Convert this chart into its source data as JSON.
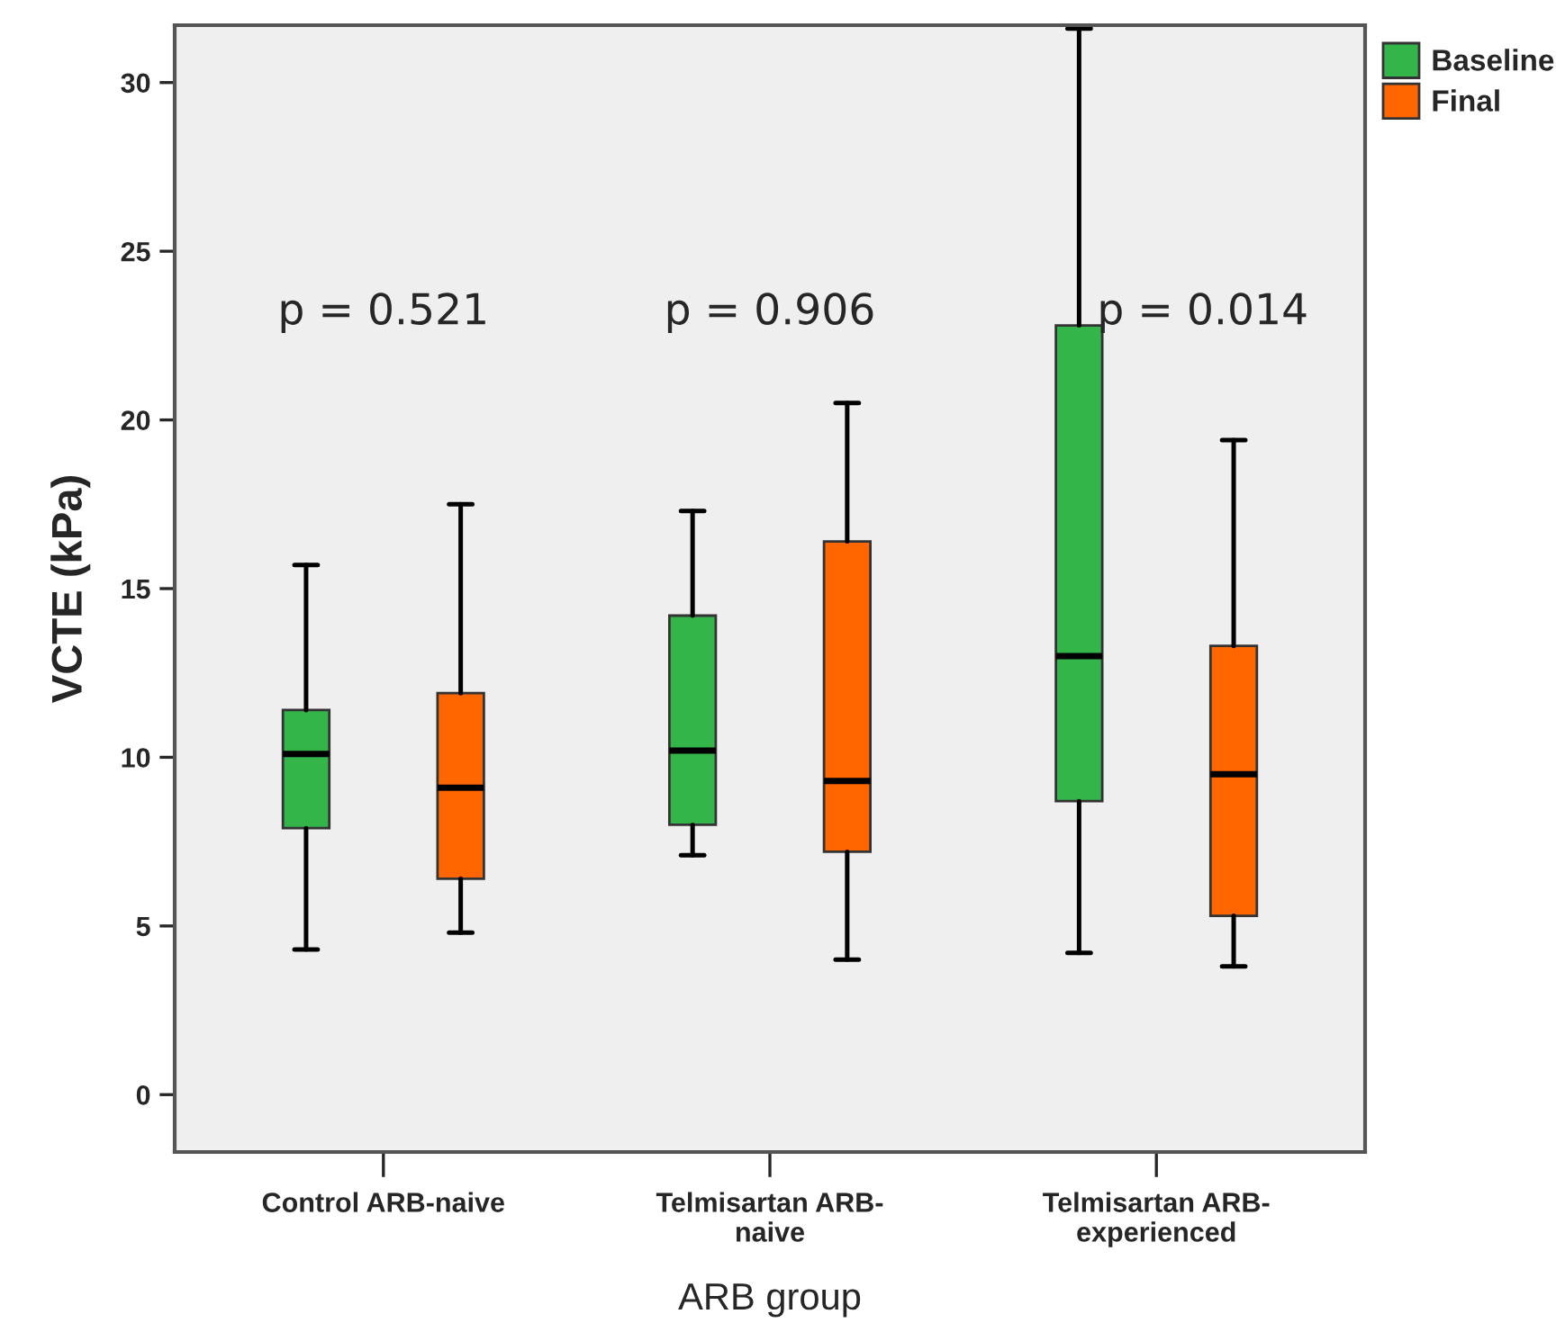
{
  "chart_data": {
    "type": "box",
    "xlabel": "ARB group",
    "ylabel": "VCTE (kPa)",
    "categories": [
      "Control ARB-naive",
      "Telmisartan ARB-naive",
      "Telmisartan ARB-experienced"
    ],
    "series": [
      {
        "name": "Baseline",
        "color": "#33b54a",
        "boxes": [
          {
            "low": 4.3,
            "q1": 7.9,
            "median": 10.1,
            "q3": 11.4,
            "high": 15.7
          },
          {
            "low": 7.1,
            "q1": 8.0,
            "median": 10.2,
            "q3": 14.2,
            "high": 17.3
          },
          {
            "low": 4.2,
            "q1": 8.7,
            "median": 13.0,
            "q3": 22.8,
            "high": 31.6
          }
        ]
      },
      {
        "name": "Final",
        "color": "#ff6600",
        "boxes": [
          {
            "low": 4.8,
            "q1": 6.4,
            "median": 9.1,
            "q3": 11.9,
            "high": 17.5
          },
          {
            "low": 4.0,
            "q1": 7.2,
            "median": 9.3,
            "q3": 16.4,
            "high": 20.5
          },
          {
            "low": 3.8,
            "q1": 5.3,
            "median": 9.5,
            "q3": 13.3,
            "high": 19.4
          }
        ]
      }
    ],
    "ylim": [
      -1.7,
      31.7
    ],
    "yticks": [
      0,
      5,
      10,
      15,
      20,
      25,
      30
    ],
    "annotations": [
      "p = 0.521",
      "p = 0.906",
      "p = 0.014"
    ],
    "legend": "top right",
    "grid": false
  }
}
